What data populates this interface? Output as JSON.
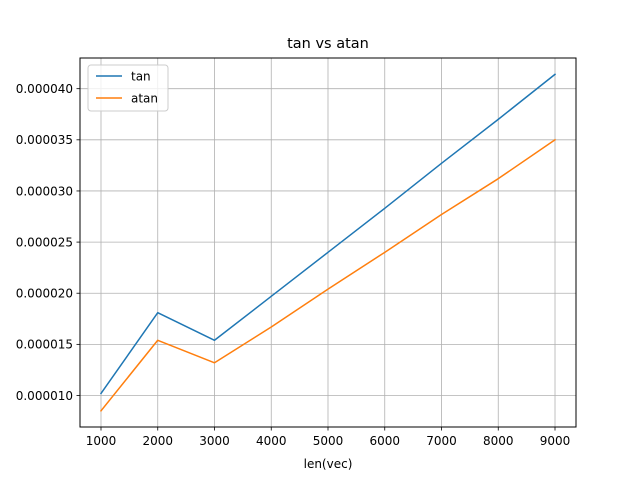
{
  "chart_data": {
    "type": "line",
    "title": "tan vs atan",
    "xlabel": "len(vec)",
    "ylabel": "",
    "x": [
      1000,
      2000,
      3000,
      4000,
      5000,
      6000,
      7000,
      8000,
      9000
    ],
    "series": [
      {
        "name": "tan",
        "color": "#1f77b4",
        "values": [
          1.02e-05,
          1.81e-05,
          1.54e-05,
          1.97e-05,
          2.4e-05,
          2.83e-05,
          3.27e-05,
          3.7e-05,
          4.14e-05
        ]
      },
      {
        "name": "atan",
        "color": "#ff7f0e",
        "values": [
          8.5e-06,
          1.54e-05,
          1.32e-05,
          1.67e-05,
          2.04e-05,
          2.4e-05,
          2.77e-05,
          3.12e-05,
          3.5e-05
        ]
      }
    ],
    "xlim": [
      630,
      9370
    ],
    "ylim": [
      6.92e-06,
      4.3e-05
    ],
    "xticks": [
      1000,
      2000,
      3000,
      4000,
      5000,
      6000,
      7000,
      8000,
      9000
    ],
    "xtick_labels": [
      "1000",
      "2000",
      "3000",
      "4000",
      "5000",
      "6000",
      "7000",
      "8000",
      "9000"
    ],
    "yticks": [
      1e-05,
      1.5e-05,
      2e-05,
      2.5e-05,
      3e-05,
      3.5e-05,
      4e-05
    ],
    "ytick_labels": [
      "0.000010",
      "0.000015",
      "0.000020",
      "0.000025",
      "0.000030",
      "0.000035",
      "0.000040"
    ],
    "grid": true,
    "legend_position": "upper left"
  }
}
